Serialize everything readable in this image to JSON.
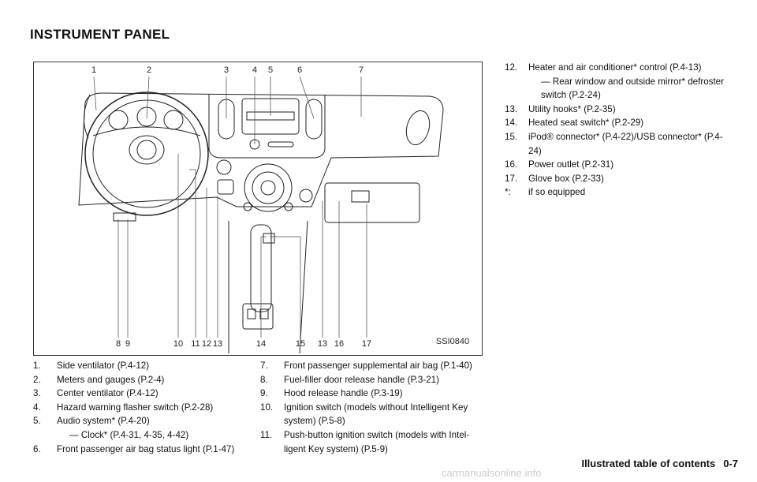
{
  "header": {
    "title": "INSTRUMENT PANEL"
  },
  "figure": {
    "top_callouts": [
      "1",
      "2",
      "3",
      "4",
      "5",
      "6",
      "7"
    ],
    "bottom_callouts": [
      "8",
      "9",
      "10",
      "11",
      "12",
      "13",
      "14",
      "15",
      "13",
      "16",
      "17"
    ],
    "code": "SSI0840"
  },
  "items": [
    {
      "number": "1.",
      "text": "Side ventilator (P.4-12)"
    },
    {
      "number": "2.",
      "text": "Meters and gauges (P.2-4)"
    },
    {
      "number": "3.",
      "text": "Center ventilator (P.4-12)"
    },
    {
      "number": "4.",
      "text": "Hazard warning flasher switch (P.2-28)"
    },
    {
      "number": "5.",
      "text": "Audio system* (P.4-20)",
      "sub": "— Clock* (P.4-31, 4-35, 4-42)"
    },
    {
      "number": "6.",
      "text": "Front passenger air bag status light (P.1-47)"
    },
    {
      "number": "7.",
      "text": "Front passenger supplemental air bag (P.1-40)"
    },
    {
      "number": "8.",
      "text": "Fuel-filler door release handle (P.3-21)"
    },
    {
      "number": "9.",
      "text": "Hood release handle (P.3-19)"
    },
    {
      "number": "10.",
      "text": "Ignition switch (models without Intelligent Key system) (P.5-8)"
    },
    {
      "number": "11.",
      "text": "Push-button ignition switch (models with Intel-ligent Key system) (P.5-9)"
    },
    {
      "number": "12.",
      "text": "Heater and air conditioner* control (P.4-13)",
      "sub": "— Rear window and outside mirror* defroster switch (P.2-24)"
    },
    {
      "number": "13.",
      "text": "Utility hooks* (P.2-35)"
    },
    {
      "number": "14.",
      "text": "Heated seat switch* (P.2-29)"
    },
    {
      "number": "15.",
      "text": "iPod® connector* (P.4-22)/USB connector* (P.4-24)"
    },
    {
      "number": "16.",
      "text": "Power outlet (P.2-31)"
    },
    {
      "number": "17.",
      "text": "Glove box (P.2-33)"
    }
  ],
  "footnote": {
    "mark": "*:",
    "text": "if so equipped"
  },
  "footer": {
    "section": "Illustrated table of contents",
    "page": "0-7"
  },
  "watermark": "carmanualsonline.info"
}
